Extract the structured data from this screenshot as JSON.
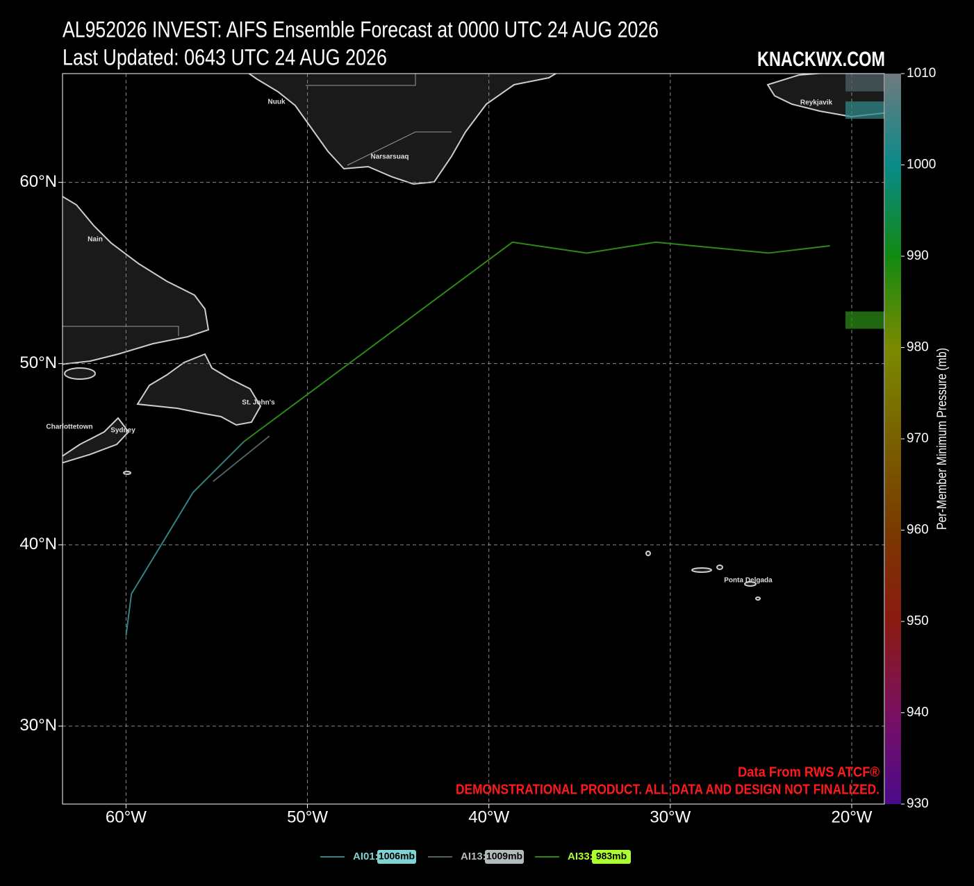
{
  "chart_data": {
    "type": "track-map",
    "title": "AL952026 INVEST: AIFS Ensemble Forecast at 0000 UTC 24 AUG 2026",
    "subtitle": "Last Updated: 0643 UTC 24 AUG 2026",
    "site": "KNACKWX.COM",
    "annotations": [
      "Data From RWS ATCF®",
      "DEMONSTRATIONAL PRODUCT. ALL DATA AND DESIGN NOT FINALIZED."
    ],
    "places": [
      "Nuuk",
      "Narsarsuaq",
      "Reykjavik",
      "Nain",
      "St. John's",
      "Charlottetown",
      "Sydney",
      "Ponta Delgada"
    ],
    "xlim": [
      -63.5,
      -18.2
    ],
    "ylim": [
      25.7,
      66.0
    ],
    "xticks": [
      {
        "value": -60,
        "label": "60°W"
      },
      {
        "value": -50,
        "label": "50°W"
      },
      {
        "value": -40,
        "label": "40°W"
      },
      {
        "value": -30,
        "label": "30°W"
      },
      {
        "value": -20,
        "label": "20°W"
      }
    ],
    "yticks": [
      {
        "value": 30,
        "label": "30°N"
      },
      {
        "value": 40,
        "label": "40°N"
      },
      {
        "value": 50,
        "label": "50°N"
      },
      {
        "value": 60,
        "label": "60°N"
      }
    ],
    "grid": true,
    "colorbar": {
      "label": "Per-Member Minimum Pressure (mb)",
      "lim": [
        930,
        1010
      ],
      "ticks": [
        930,
        940,
        950,
        960,
        970,
        980,
        990,
        1000,
        1010
      ],
      "colors": [
        "#4b0a8c",
        "#7a1060",
        "#8a1a10",
        "#7a3a00",
        "#7a6000",
        "#7a8a00",
        "#128a12",
        "#0a8a8a",
        "#707a80"
      ]
    },
    "series": [
      {
        "name": "AI01:",
        "color": "#2f8585",
        "label_color": "#7fd3d3",
        "min_pressure": 1006,
        "min_pressure_label": "1006mb",
        "x": [
          -60.0,
          -59.7,
          -56.3,
          -53.5
        ],
        "y": [
          35.0,
          37.3,
          42.9,
          45.7
        ]
      },
      {
        "name": "AI13:",
        "color": "#4e6066",
        "label_color": "#b3bcbc",
        "min_pressure": 1009,
        "min_pressure_label": "1009mb",
        "x": [
          -55.2,
          -52.1
        ],
        "y": [
          43.5,
          46.0
        ]
      },
      {
        "name": "AI33:",
        "color": "#2c8a14",
        "label_color": "#adff2f",
        "min_pressure": 983,
        "min_pressure_label": "983mb",
        "x": [
          -53.5,
          -38.7,
          -34.6,
          -30.8,
          -24.6,
          -21.2
        ],
        "y": [
          45.7,
          56.7,
          56.1,
          56.7,
          56.1,
          56.5
        ]
      }
    ]
  }
}
